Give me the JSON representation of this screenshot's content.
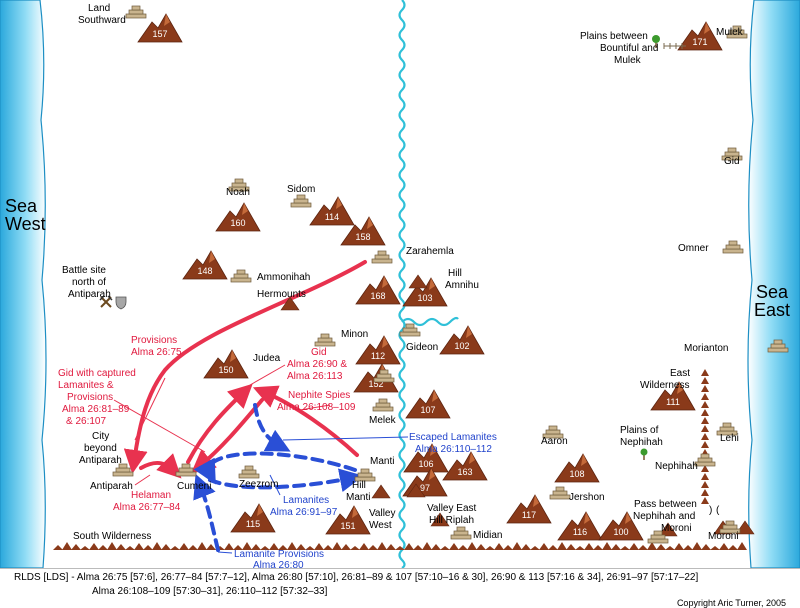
{
  "seas": {
    "west": [
      "Sea",
      "West"
    ],
    "east": [
      "Sea",
      "East"
    ]
  },
  "places": {
    "land_southward": [
      "Land",
      "Southward"
    ],
    "noah": "Noah",
    "sidom": "Sidom",
    "zarahemla": "Zarahemla",
    "battle_site": [
      "Battle site",
      "north of",
      "Antiparah"
    ],
    "ammonihah": "Ammonihah",
    "hermounts": "Hermounts",
    "hill_amnihu": [
      "Hill",
      "Amnihu"
    ],
    "minon": "Minon",
    "gideon": "Gideon",
    "judea": "Judea",
    "melek": "Melek",
    "city_beyond_antiparah": [
      "City",
      "beyond",
      "Antiparah"
    ],
    "antiparah": "Antiparah",
    "cumeni": "Cumeni",
    "zeezrom": "Zeezrom",
    "manti": "Manti",
    "hill_manti": [
      "Hill",
      "Manti"
    ],
    "valley_west": [
      "Valley",
      "West"
    ],
    "valley_east": "Valley East",
    "hill_riplah": "Hill Riplah",
    "midian": "Midian",
    "aaron": "Aaron",
    "jershon": "Jershon",
    "south_wilderness": "South Wilderness",
    "plains_bountiful_mulek": [
      "Plains between",
      "Bountiful and",
      "Mulek"
    ],
    "mulek": "Mulek",
    "gid": "Gid",
    "omner": "Omner",
    "morianton": "Morianton",
    "east_wilderness": [
      "East",
      "Wilderness"
    ],
    "plains_nephihah": [
      "Plains of",
      "Nephihah"
    ],
    "nephihah": "Nephihah",
    "lehi": "Lehi",
    "pass_nephihah_moroni": [
      "Pass between",
      "Nephihah and",
      "Moroni"
    ],
    "moroni": "Moroni"
  },
  "mountain_numbers": [
    "157",
    "160",
    "114",
    "158",
    "148",
    "168",
    "103",
    "102",
    "150",
    "112",
    "152",
    "107",
    "106",
    "163",
    "97",
    "115",
    "151",
    "117",
    "116",
    "100",
    "108",
    "111",
    "171"
  ],
  "route_labels": {
    "provisions": [
      "Provisions",
      "Alma 26:75"
    ],
    "gid_captured": [
      "Gid with captured",
      "Lamanites &",
      "Provisions",
      "Alma 26:81–89",
      "& 26:107"
    ],
    "gid": [
      "Gid",
      "Alma 26:90 &",
      "Alma 26:113"
    ],
    "nephite_spies": [
      "Nephite Spies",
      "Alma 26:108–109"
    ],
    "helaman": [
      "Helaman",
      "Alma 26:77–84"
    ],
    "escaped_lamanites": [
      "Escaped Lamanites",
      "Alma 26:110–112"
    ],
    "lamanites": [
      "Lamanites",
      "Alma 26:91–97"
    ],
    "lamanite_provisions": [
      "Lamanite Provisions",
      "Alma 26:80"
    ]
  },
  "footer": {
    "line1": "RLDS [LDS] - Alma 26:75 [57:6], 26:77–84 [57:7–12], Alma 26:80 [57:10], 26:81–89 & 107 [57:10–16 & 30], 26:90 & 113 [57:16 & 34], 26:91–97 [57:17–22]",
    "line2": "Alma 26:108–109 [57:30–31], 26:110–112 [57:32–33]",
    "copyright": "Copyright Aric Turner, 2005"
  },
  "colors": {
    "red_route": "#e8324f",
    "blue_route": "#2a4fd6",
    "sea": "#34b8e6",
    "river": "#2fc0d8",
    "mountain": "#8a3a1a",
    "city": "#c9b48e"
  },
  "icons": [
    "crossed-swords-icon",
    "shield-icon",
    "tree-icon",
    "fence-icon"
  ]
}
